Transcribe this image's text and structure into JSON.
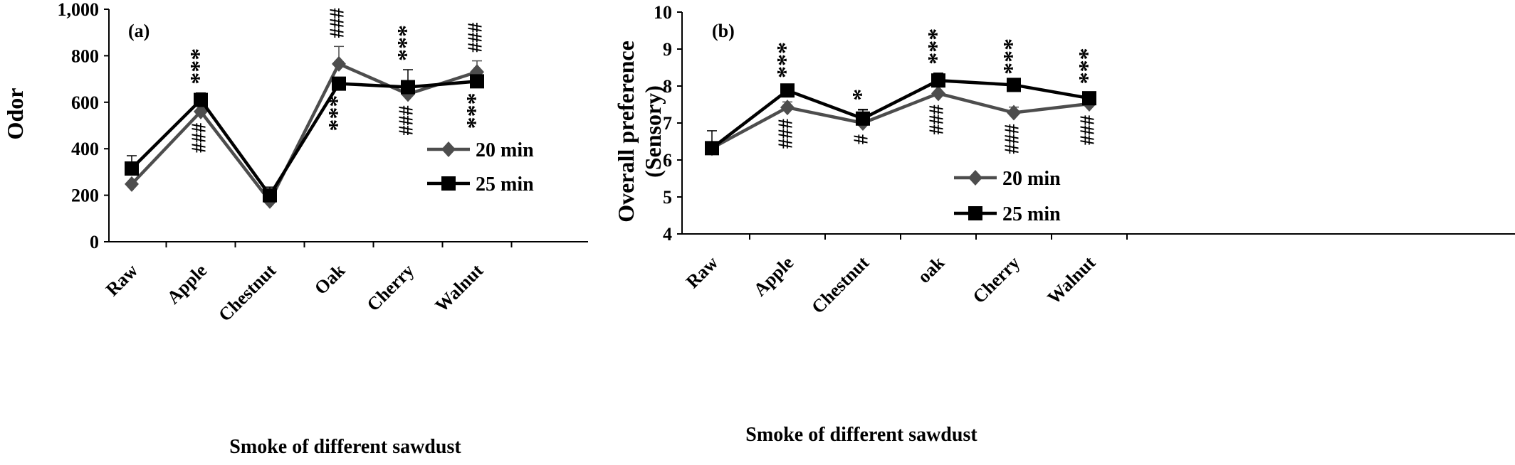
{
  "chart_data": [
    {
      "type": "line",
      "panel_label": "(a)",
      "xlabel": "Smoke of different sawdust",
      "ylabel": "Odor",
      "ylim": [
        0,
        1000
      ],
      "yticks": [
        "0",
        "200",
        "400",
        "600",
        "800",
        "1,000"
      ],
      "categories": [
        "Raw",
        "Apple",
        "Chestnut",
        "Oak",
        "Cherry",
        "Walnut"
      ],
      "series": [
        {
          "name": "20 min",
          "marker": "diamond",
          "color": "#4d4d4d",
          "values": [
            248,
            560,
            175,
            765,
            635,
            730
          ],
          "errors": [
            0,
            0,
            0,
            75,
            0,
            48
          ]
        },
        {
          "name": "25 min",
          "marker": "square",
          "color": "#000000",
          "values": [
            315,
            610,
            200,
            680,
            665,
            690
          ],
          "errors": [
            55,
            30,
            35,
            0,
            75,
            0
          ]
        }
      ],
      "legend": {
        "position": "right"
      },
      "annotations": [
        {
          "category": 1,
          "text": "***",
          "position": "above"
        },
        {
          "category": 1,
          "text": "###",
          "position": "below"
        },
        {
          "category": 3,
          "text": "###",
          "position": "above"
        },
        {
          "category": 3,
          "text": "***",
          "position": "below"
        },
        {
          "category": 4,
          "text": "***",
          "position": "above"
        },
        {
          "category": 4,
          "text": "###",
          "position": "below"
        },
        {
          "category": 5,
          "text": "###",
          "position": "above"
        },
        {
          "category": 5,
          "text": "***",
          "position": "below"
        }
      ]
    },
    {
      "type": "line",
      "panel_label": "(b)",
      "xlabel": "Smoke of different sawdust",
      "ylabel": "Overall preference\n(Sensory)",
      "ylim": [
        4,
        10
      ],
      "yticks": [
        "4",
        "5",
        "6",
        "7",
        "8",
        "9",
        "10"
      ],
      "categories": [
        "Raw",
        "Apple",
        "Chestnut",
        "oak",
        "Cherry",
        "Walnut"
      ],
      "series": [
        {
          "name": "20 min",
          "marker": "diamond",
          "color": "#4d4d4d",
          "values": [
            6.32,
            7.42,
            7.0,
            7.8,
            7.28,
            7.52
          ],
          "errors": [
            0,
            0.15,
            0.35,
            0,
            0.15,
            0.1
          ]
        },
        {
          "name": "25 min",
          "marker": "square",
          "color": "#000000",
          "values": [
            6.32,
            7.88,
            7.12,
            8.15,
            8.03,
            7.67
          ],
          "errors": [
            0.47,
            0.1,
            0.25,
            0.2,
            0.05,
            0.15
          ]
        }
      ],
      "legend": {
        "position": "bottom-right"
      },
      "annotations": [
        {
          "category": 1,
          "text": "***",
          "position": "above"
        },
        {
          "category": 1,
          "text": "###",
          "position": "below"
        },
        {
          "category": 2,
          "text": "*",
          "position": "above"
        },
        {
          "category": 2,
          "text": "#",
          "position": "below"
        },
        {
          "category": 3,
          "text": "***",
          "position": "above"
        },
        {
          "category": 3,
          "text": "###",
          "position": "below"
        },
        {
          "category": 4,
          "text": "***",
          "position": "above"
        },
        {
          "category": 4,
          "text": "###",
          "position": "below"
        },
        {
          "category": 5,
          "text": "***",
          "position": "above"
        },
        {
          "category": 5,
          "text": "###",
          "position": "below"
        }
      ]
    }
  ]
}
